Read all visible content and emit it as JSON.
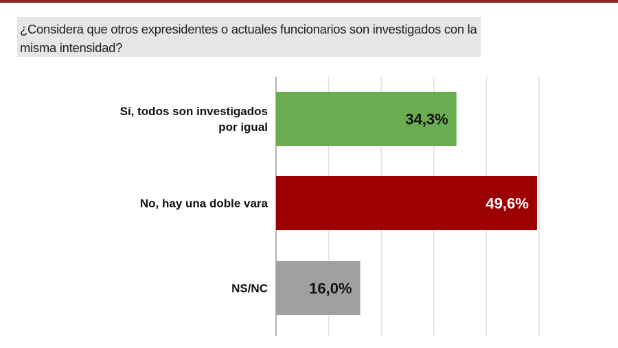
{
  "chart_data": {
    "type": "bar",
    "orientation": "horizontal",
    "title": "¿Considera que otros expresidentes o actuales funcionarios son investigados con la misma intensidad?",
    "categories": [
      [
        "Sí, todos son investigados",
        "por igual"
      ],
      [
        "No, hay una doble vara"
      ],
      [
        "NS/NC"
      ]
    ],
    "values": [
      34.3,
      49.6,
      16.0
    ],
    "labels": [
      "34,3%",
      "49,6%",
      "16,0%"
    ],
    "colors": [
      "#6aac50",
      "#9c0000",
      "#a0a0a0"
    ],
    "label_colors": [
      "#111111",
      "#ffffff",
      "#111111"
    ],
    "xlim": [
      0,
      50
    ],
    "grid": true,
    "grid_step": 10
  },
  "colors": {
    "top_bar": "#8e2424",
    "title_bg": "#e6e6e6"
  }
}
